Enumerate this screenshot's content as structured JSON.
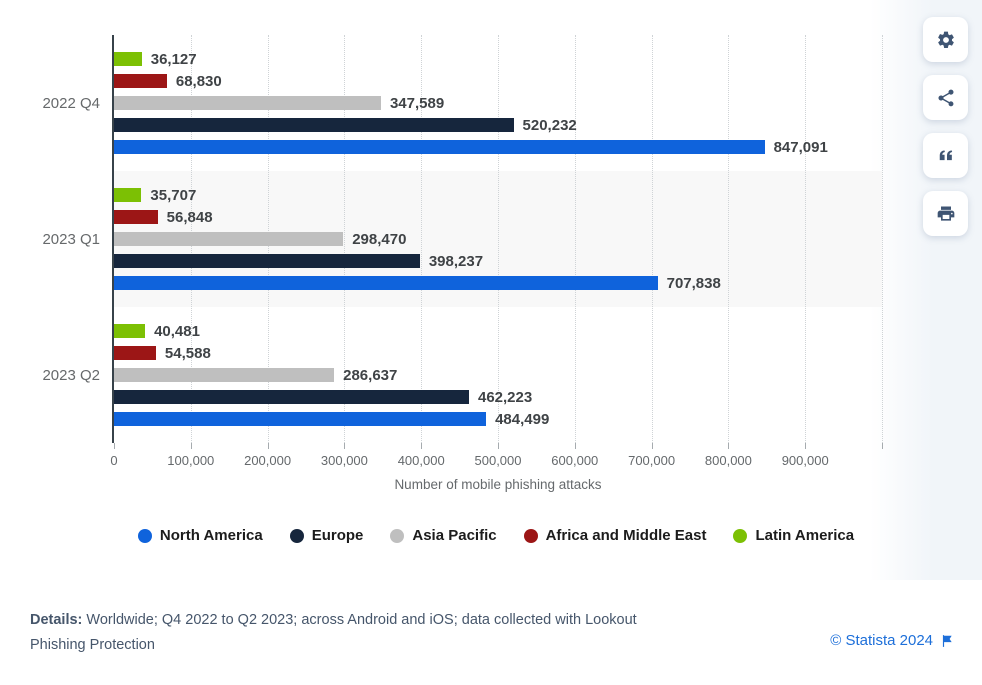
{
  "chart_data": {
    "type": "bar",
    "orientation": "horizontal-grouped",
    "title": "",
    "xlabel": "Number of mobile phishing attacks",
    "ylabel": "",
    "xlim": [
      0,
      1000000
    ],
    "xticks": [
      0,
      100000,
      200000,
      300000,
      400000,
      500000,
      600000,
      700000,
      800000,
      900000
    ],
    "xtick_labels": [
      "0",
      "100,000",
      "200,000",
      "300,000",
      "400,000",
      "500,000",
      "600,000",
      "700,000",
      "800,000",
      "900,000"
    ],
    "grid": "vertical-dotted",
    "legend_position": "bottom",
    "categories": [
      "2022 Q4",
      "2023 Q1",
      "2023 Q2"
    ],
    "series": [
      {
        "name": "North America",
        "color": "#0f63dc",
        "values": [
          847091,
          707838,
          484499
        ],
        "labels": [
          "847,091",
          "707,838",
          "484,499"
        ]
      },
      {
        "name": "Europe",
        "color": "#16263d",
        "values": [
          520232,
          398237,
          462223
        ],
        "labels": [
          "520,232",
          "398,237",
          "462,223"
        ]
      },
      {
        "name": "Asia Pacific",
        "color": "#bfbfbf",
        "values": [
          347589,
          298470,
          286637
        ],
        "labels": [
          "347,589",
          "298,470",
          "286,637"
        ]
      },
      {
        "name": "Africa and Middle East",
        "color": "#9c1616",
        "values": [
          68830,
          56848,
          54588
        ],
        "labels": [
          "68,830",
          "56,848",
          "54,588"
        ]
      },
      {
        "name": "Latin America",
        "color": "#7cc004",
        "values": [
          36127,
          35707,
          40481
        ],
        "labels": [
          "36,127",
          "35,707",
          "40,481"
        ]
      }
    ],
    "bar_order_top_to_bottom": [
      "Latin America",
      "Africa and Middle East",
      "Asia Pacific",
      "Europe",
      "North America"
    ],
    "band_highlight_category_index": 1,
    "band_color": "#f8f8f8"
  },
  "toolbar": {
    "buttons": [
      {
        "name": "settings",
        "icon": "gear-icon"
      },
      {
        "name": "share",
        "icon": "share-icon"
      },
      {
        "name": "cite",
        "icon": "quote-icon"
      },
      {
        "name": "print",
        "icon": "printer-icon"
      }
    ]
  },
  "footer": {
    "details_label": "Details:",
    "details_text": " Worldwide; Q4 2022 to Q2 2023; across Android and iOS; data collected with Lookout Phishing Protection",
    "copyright": "© Statista 2024",
    "flag_icon": "flag-icon"
  },
  "colors": {
    "axis_line": "#37424a",
    "tick_label": "#65696c",
    "category_label": "#66696b",
    "value_label": "#3f4346",
    "gridline": "#cfd3d6",
    "toolbar_icon": "#3f5573",
    "details_text": "#46566b",
    "statista_blue": "#1d6fd9"
  }
}
